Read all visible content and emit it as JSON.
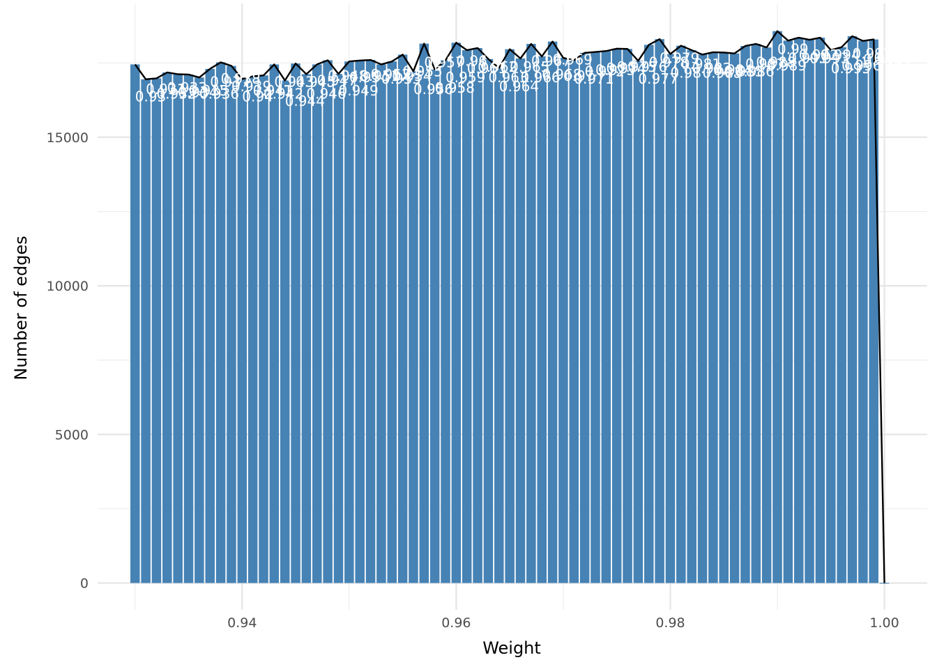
{
  "chart_data": {
    "type": "bar",
    "xlabel": "Weight",
    "ylabel": "Number of edges",
    "xlim": [
      0.9265,
      1.004
    ],
    "ylim": [
      -900,
      19500
    ],
    "x_ticks": [
      0.94,
      0.96,
      0.98,
      1.0
    ],
    "x_tick_labels": [
      "0.94",
      "0.96",
      "0.98",
      "1.00"
    ],
    "y_ticks": [
      0,
      5000,
      10000,
      15000
    ],
    "y_tick_labels": [
      "0",
      "5000",
      "10000",
      "15000"
    ],
    "grid": true,
    "bar_width": 0.00088,
    "bar_color": "#4682b4",
    "line_color": "#000000",
    "x": [
      0.93,
      0.931,
      0.932,
      0.933,
      0.934,
      0.935,
      0.936,
      0.937,
      0.938,
      0.939,
      0.94,
      0.941,
      0.942,
      0.943,
      0.944,
      0.945,
      0.946,
      0.947,
      0.948,
      0.949,
      0.95,
      0.951,
      0.952,
      0.953,
      0.954,
      0.955,
      0.956,
      0.957,
      0.958,
      0.959,
      0.96,
      0.961,
      0.962,
      0.963,
      0.964,
      0.965,
      0.966,
      0.967,
      0.968,
      0.969,
      0.97,
      0.971,
      0.972,
      0.973,
      0.974,
      0.975,
      0.976,
      0.977,
      0.978,
      0.979,
      0.98,
      0.981,
      0.982,
      0.983,
      0.984,
      0.985,
      0.986,
      0.987,
      0.988,
      0.989,
      0.99,
      0.991,
      0.992,
      0.993,
      0.994,
      0.995,
      0.996,
      0.997,
      0.998,
      0.999,
      1.0
    ],
    "values": [
      17450,
      16950,
      16980,
      17180,
      17120,
      17110,
      17010,
      17300,
      17520,
      17400,
      16960,
      17050,
      17080,
      17450,
      16910,
      17480,
      17120,
      17450,
      17590,
      17130,
      17550,
      17580,
      17600,
      17450,
      17550,
      17780,
      17220,
      18150,
      17280,
      17590,
      18180,
      17930,
      18000,
      17630,
      17330,
      17960,
      17650,
      18140,
      17720,
      18220,
      17670,
      17590,
      17840,
      17870,
      17900,
      17980,
      17970,
      17570,
      18110,
      18300,
      17800,
      18080,
      17930,
      17780,
      17860,
      17850,
      17820,
      18070,
      18140,
      18020,
      18570,
      18250,
      18350,
      18280,
      18350,
      17930,
      18030,
      18400,
      18240,
      18290,
      0
    ],
    "bar_labels": [
      {
        "text": "0.93",
        "x": 0.93,
        "y": 16200
      },
      {
        "text": "0.931",
        "x": 0.931,
        "y": 16450
      },
      {
        "text": "0.932",
        "x": 0.932,
        "y": 16300
      },
      {
        "text": "0.933",
        "x": 0.933,
        "y": 16500
      },
      {
        "text": "0.934",
        "x": 0.934,
        "y": 16350
      },
      {
        "text": "0.935",
        "x": 0.935,
        "y": 16400
      },
      {
        "text": "0.936",
        "x": 0.936,
        "y": 16300
      },
      {
        "text": "0.937",
        "x": 0.937,
        "y": 16700
      },
      {
        "text": "0.938",
        "x": 0.938,
        "y": 16800
      },
      {
        "text": "0.939",
        "x": 0.939,
        "y": 16550
      },
      {
        "text": "0.94",
        "x": 0.94,
        "y": 16200
      },
      {
        "text": "0.941",
        "x": 0.941,
        "y": 16400
      },
      {
        "text": "0.942",
        "x": 0.942,
        "y": 16300
      },
      {
        "text": "0.943",
        "x": 0.943,
        "y": 16700
      },
      {
        "text": "0.944",
        "x": 0.944,
        "y": 16050
      },
      {
        "text": "0.945",
        "x": 0.945,
        "y": 16700
      },
      {
        "text": "0.946",
        "x": 0.946,
        "y": 16300
      },
      {
        "text": "0.947",
        "x": 0.947,
        "y": 16750
      },
      {
        "text": "0.948",
        "x": 0.948,
        "y": 16900
      },
      {
        "text": "0.949",
        "x": 0.949,
        "y": 16400
      },
      {
        "text": "0.95",
        "x": 0.95,
        "y": 16850
      },
      {
        "text": "0.951",
        "x": 0.951,
        "y": 16900
      },
      {
        "text": "0.952",
        "x": 0.952,
        "y": 16950
      },
      {
        "text": "0.953",
        "x": 0.953,
        "y": 16800
      },
      {
        "text": "0.954",
        "x": 0.954,
        "y": 16900
      },
      {
        "text": "0.955",
        "x": 0.955,
        "y": 17050
      },
      {
        "text": "0.956",
        "x": 0.956,
        "y": 16450
      },
      {
        "text": "0.957",
        "x": 0.957,
        "y": 17350
      },
      {
        "text": "0.958",
        "x": 0.958,
        "y": 16500
      },
      {
        "text": "0.959",
        "x": 0.959,
        "y": 16850
      },
      {
        "text": "0.96",
        "x": 0.96,
        "y": 17400
      },
      {
        "text": "0.961",
        "x": 0.961,
        "y": 17150
      },
      {
        "text": "0.962",
        "x": 0.962,
        "y": 17200
      },
      {
        "text": "0.963",
        "x": 0.963,
        "y": 16850
      },
      {
        "text": "0.964",
        "x": 0.964,
        "y": 16550
      },
      {
        "text": "0.965",
        "x": 0.965,
        "y": 17200
      },
      {
        "text": "0.966",
        "x": 0.966,
        "y": 16850
      },
      {
        "text": "0.967",
        "x": 0.967,
        "y": 17400
      },
      {
        "text": "0.968",
        "x": 0.968,
        "y": 16950
      },
      {
        "text": "0.969",
        "x": 0.969,
        "y": 17450
      },
      {
        "text": "0.97",
        "x": 0.97,
        "y": 16900
      },
      {
        "text": "0.971",
        "x": 0.971,
        "y": 16800
      },
      {
        "text": "0.972",
        "x": 0.972,
        "y": 17050
      },
      {
        "text": "0.973",
        "x": 0.973,
        "y": 17100
      },
      {
        "text": "0.974",
        "x": 0.974,
        "y": 17150
      },
      {
        "text": "0.975",
        "x": 0.975,
        "y": 17200
      },
      {
        "text": "0.976",
        "x": 0.976,
        "y": 17200
      },
      {
        "text": "0.977",
        "x": 0.977,
        "y": 16800
      },
      {
        "text": "0.978",
        "x": 0.978,
        "y": 17350
      },
      {
        "text": "0.979",
        "x": 0.979,
        "y": 17500
      },
      {
        "text": "0.98",
        "x": 0.98,
        "y": 17000
      },
      {
        "text": "0.981",
        "x": 0.981,
        "y": 17300
      },
      {
        "text": "0.982",
        "x": 0.982,
        "y": 17150
      },
      {
        "text": "0.983",
        "x": 0.983,
        "y": 17000
      },
      {
        "text": "0.984",
        "x": 0.984,
        "y": 17100
      },
      {
        "text": "0.985",
        "x": 0.985,
        "y": 17050
      },
      {
        "text": "0.986",
        "x": 0.986,
        "y": 17050
      },
      {
        "text": "0.987",
        "x": 0.987,
        "y": 17300
      },
      {
        "text": "0.988",
        "x": 0.988,
        "y": 17350
      },
      {
        "text": "0.989",
        "x": 0.989,
        "y": 17250
      },
      {
        "text": "0.99",
        "x": 0.99,
        "y": 17800
      },
      {
        "text": "0.991",
        "x": 0.991,
        "y": 17500
      },
      {
        "text": "0.992",
        "x": 0.992,
        "y": 17600
      },
      {
        "text": "0.993",
        "x": 0.993,
        "y": 17500
      },
      {
        "text": "0.994",
        "x": 0.994,
        "y": 17600
      },
      {
        "text": "0.995",
        "x": 0.995,
        "y": 17150
      },
      {
        "text": "0.996",
        "x": 0.996,
        "y": 17250
      },
      {
        "text": "0.997",
        "x": 0.997,
        "y": 17650
      },
      {
        "text": "0.998",
        "x": 0.998,
        "y": 17450
      },
      {
        "text": "0.999",
        "x": 0.999,
        "y": 17500
      }
    ]
  }
}
